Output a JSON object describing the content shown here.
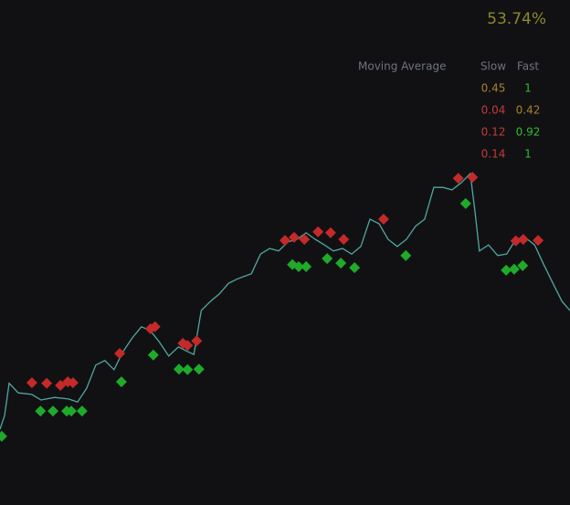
{
  "panel": {
    "performance": "53.74%",
    "performance_color": "#8a8a2a",
    "table": {
      "header": [
        "Moving Average",
        "Slow",
        "Fast"
      ],
      "header_color": "#6f7380",
      "rows": [
        [
          0.45,
          1
        ],
        [
          0.04,
          0.42
        ],
        [
          0.12,
          0.92
        ],
        [
          0.14,
          1
        ]
      ],
      "colors": [
        [
          "#a8802e",
          "#2fbf2f"
        ],
        [
          "#c43a3a",
          "#a8802e"
        ],
        [
          "#c43a3a",
          "#2fbf2f"
        ],
        [
          "#c43a3a",
          "#2fbf2f"
        ]
      ]
    }
  },
  "chart_data": {
    "type": "line",
    "color": "#4fa8a0",
    "xlim": [
      0,
      100
    ],
    "ylim": [
      0,
      100
    ],
    "x": [
      0,
      0.8,
      1.6,
      3.2,
      5.6,
      7.2,
      9.6,
      12.0,
      13.6,
      15.2,
      16.8,
      18.4,
      20.0,
      21.6,
      23.2,
      24.8,
      26.4,
      28.0,
      29.6,
      31.3,
      32.9,
      34.0,
      35.3,
      36.9,
      38.5,
      40.1,
      41.7,
      44.1,
      45.7,
      47.3,
      48.9,
      50.5,
      52.1,
      53.7,
      55.3,
      56.9,
      58.5,
      60.1,
      61.7,
      63.3,
      64.9,
      66.5,
      68.1,
      69.7,
      71.3,
      72.9,
      74.5,
      76.1,
      77.7,
      79.3,
      80.9,
      82.5,
      83.3,
      84.1,
      85.7,
      87.3,
      88.9,
      90.5,
      92.1,
      93.8,
      95.4,
      97.0,
      98.6,
      100
    ],
    "values": [
      15.0,
      17.7,
      24.1,
      22.2,
      21.9,
      20.8,
      21.3,
      21.0,
      20.4,
      23.1,
      27.7,
      28.6,
      26.8,
      30.4,
      33.1,
      35.3,
      34.5,
      32.2,
      29.5,
      31.3,
      30.4,
      29.8,
      38.5,
      40.3,
      41.8,
      43.9,
      44.8,
      45.8,
      49.7,
      50.8,
      50.3,
      52.1,
      52.6,
      53.9,
      52.6,
      51.5,
      50.3,
      50.8,
      49.7,
      51.2,
      56.6,
      55.7,
      52.6,
      51.2,
      52.6,
      55.2,
      56.6,
      62.9,
      62.9,
      62.4,
      63.8,
      65.6,
      58.4,
      50.3,
      51.5,
      49.4,
      49.7,
      52.6,
      53.0,
      51.5,
      47.6,
      43.9,
      40.3,
      38.5
    ],
    "markers": [
      {
        "color": "#c42a2a",
        "x": [
          5.6,
          8.2,
          10.6,
          11.9,
          12.8,
          21.0,
          26.4,
          27.2,
          32.1,
          32.9,
          34.5,
          50.0,
          51.6,
          53.4,
          55.8,
          58.0,
          60.3,
          67.3,
          80.4,
          82.9,
          90.5,
          91.8,
          94.4
        ],
        "values": [
          24.2,
          24.1,
          23.7,
          24.4,
          24.2,
          30.0,
          34.9,
          35.3,
          32.0,
          31.6,
          32.5,
          52.4,
          53.0,
          52.6,
          54.1,
          53.9,
          52.6,
          56.6,
          64.7,
          64.9,
          52.3,
          52.6,
          52.4
        ]
      },
      {
        "color": "#1faa2a",
        "x": [
          0.3,
          7.1,
          9.3,
          11.7,
          12.5,
          14.4,
          21.3,
          26.9,
          31.4,
          32.9,
          34.9,
          51.3,
          52.4,
          53.7,
          57.4,
          59.8,
          62.2,
          71.2,
          81.7,
          88.8,
          90.2,
          91.7
        ],
        "values": [
          13.6,
          18.6,
          18.6,
          18.6,
          18.6,
          18.6,
          24.4,
          29.7,
          26.9,
          26.8,
          26.9,
          47.6,
          47.2,
          47.2,
          48.8,
          47.9,
          47.0,
          49.4,
          59.7,
          46.5,
          46.7,
          47.4
        ]
      }
    ]
  }
}
